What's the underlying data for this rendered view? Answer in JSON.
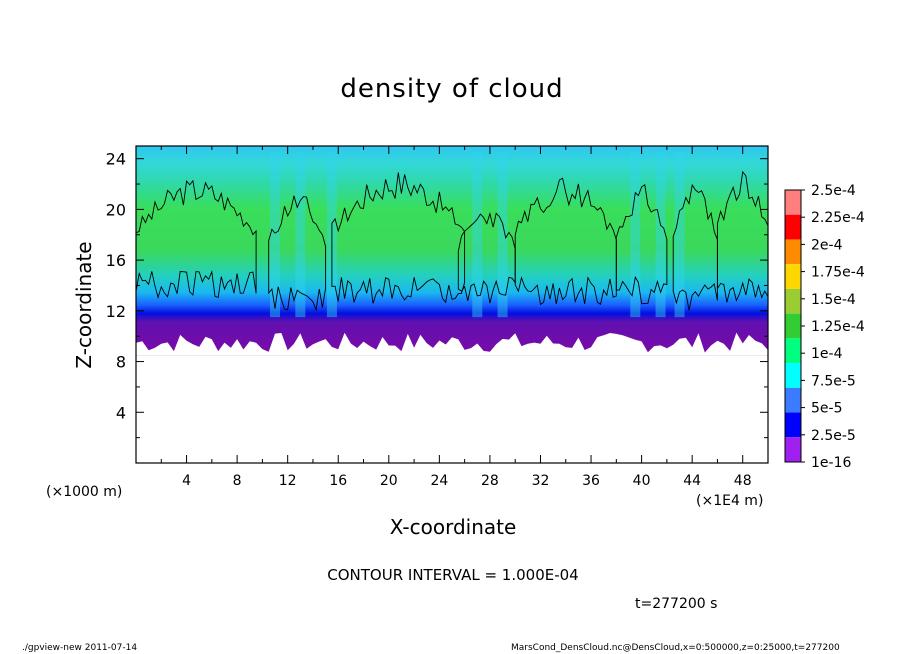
{
  "chart_data": {
    "type": "heatmap",
    "title": "density of cloud",
    "xlabel": "X-coordinate",
    "ylabel": "Z-coordinate",
    "x_unit_left": "(×1000 m)",
    "x_unit_right": "(×1E4 m)",
    "xlim": [
      0,
      50
    ],
    "ylim": [
      0,
      25
    ],
    "x_ticks": [
      "4",
      "8",
      "12",
      "16",
      "20",
      "24",
      "28",
      "32",
      "36",
      "40",
      "44",
      "48"
    ],
    "y_ticks": [
      "4",
      "8",
      "12",
      "16",
      "20",
      "24"
    ],
    "colorbar": {
      "labels": [
        "2.5e-4",
        "2.25e-4",
        "2e-4",
        "1.75e-4",
        "1.5e-4",
        "1.25e-4",
        "1e-4",
        "7.5e-5",
        "5e-5",
        "2.5e-5",
        "1e-16"
      ],
      "colors": [
        "#a020f0",
        "#0000ff",
        "#3a7bff",
        "#00ffff",
        "#00ff7f",
        "#32cd32",
        "#9acd32",
        "#ffd700",
        "#ff8c00",
        "#ff0000",
        "#ff7f7f"
      ]
    },
    "annotation": "CONTOUR INTERVAL = 1.000E-04",
    "cloud_layer_z_range": [
      8.5,
      25
    ]
  },
  "timestamp": "t=277200 s",
  "footer_left": "./gpview-new  2011-07-14",
  "footer_right": "MarsCond_DensCloud.nc@DensCloud,x=0:500000,z=0:25000,t=277200"
}
